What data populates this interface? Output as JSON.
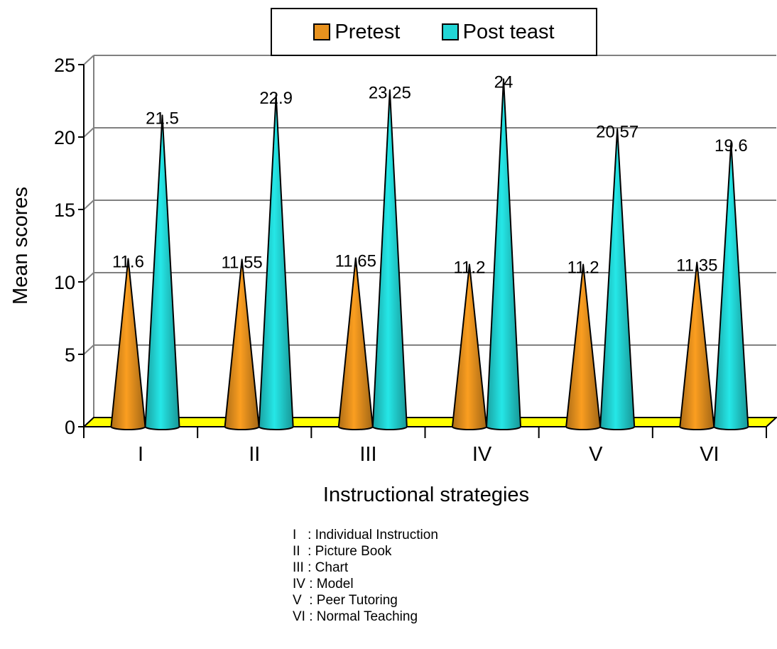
{
  "chart_data": {
    "type": "bar",
    "style": "3d-cone",
    "categories": [
      "I",
      "II",
      "III",
      "IV",
      "V",
      "VI"
    ],
    "series": [
      {
        "name": "Pretest",
        "color": "#E8921E",
        "values": [
          11.6,
          11.55,
          11.65,
          11.2,
          11.2,
          11.35
        ],
        "labels": [
          "11.6",
          "11.55",
          "11.65",
          "11.2",
          "11.2",
          "11.35"
        ]
      },
      {
        "name": "Post teast",
        "color": "#22D6D6",
        "values": [
          21.5,
          22.9,
          23.25,
          24,
          20.57,
          19.6
        ],
        "labels": [
          "21.5",
          "22.9",
          "23.25",
          "24",
          "20.57",
          "19.6"
        ]
      }
    ],
    "xlabel": "Instructional strategies",
    "ylabel": "Mean scores",
    "ylim": [
      0,
      25
    ],
    "yticks": [
      "0",
      "5",
      "10",
      "15",
      "20",
      "25"
    ],
    "grid": true,
    "legend_position": "top",
    "floor_color": "#FFFF00",
    "footnote": [
      "I   : Individual Instruction",
      "II  : Picture Book",
      "III : Chart",
      "IV : Model",
      "V  : Peer Tutoring",
      "VI : Normal Teaching"
    ]
  }
}
